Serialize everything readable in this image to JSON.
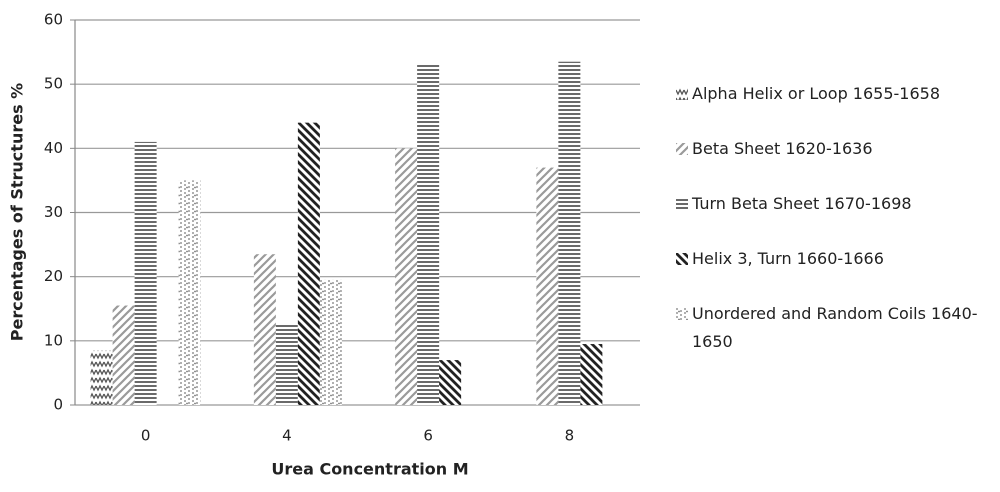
{
  "chart_data": {
    "type": "bar",
    "xlabel": "Urea Concentration M",
    "ylabel": "Percentages of Structures %",
    "categories": [
      "0",
      "4",
      "6",
      "8"
    ],
    "series": [
      {
        "name": "Alpha Helix or Loop 1655-1658",
        "color": "#555555",
        "pattern": "zigzag",
        "values": [
          8.5,
          0,
          0,
          0
        ]
      },
      {
        "name": "Beta Sheet 1620-1636",
        "color": "#9a9a9a",
        "pattern": "slash",
        "values": [
          15.5,
          23.5,
          40,
          37
        ]
      },
      {
        "name": "Turn Beta Sheet 1670-1698",
        "color": "#6a6a6a",
        "pattern": "horizontal",
        "values": [
          41,
          12.5,
          53,
          53.5
        ]
      },
      {
        "name": "Helix 3, Turn 1660-1666",
        "color": "#222222",
        "pattern": "backslash",
        "values": [
          0,
          44,
          7,
          9.5
        ]
      },
      {
        "name": "Unordered and Random Coils 1640-1650",
        "color": "#777777",
        "pattern": "dots",
        "values": [
          35,
          19.5,
          0,
          0
        ]
      }
    ],
    "ylim": [
      0,
      60
    ],
    "yticks": [
      0,
      10,
      20,
      30,
      40,
      50,
      60
    ],
    "grid": true
  }
}
